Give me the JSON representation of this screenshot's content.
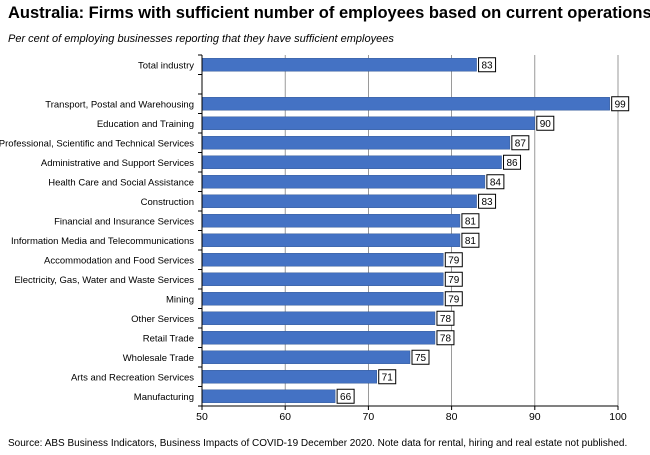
{
  "title": "Australia:  Firms with sufficient number of employees based on current operations",
  "subtitle": "Per cent of employing businesses reporting that they have sufficient employees",
  "source": "Source: ABS Business Indicators, Business Impacts of COVID-19 December 2020.  Note data for rental, hiring and real estate not published.",
  "colors": {
    "bar": "#4472C4",
    "bar_edge": "#2F5597",
    "grid": "#808080"
  },
  "chart_data": {
    "type": "bar",
    "orientation": "horizontal",
    "categories": [
      "Total industry",
      "",
      "Transport, Postal and Warehousing",
      "Education and Training",
      "Professional, Scientific and Technical Services",
      "Administrative and Support Services",
      "Health Care and Social Assistance",
      "Construction",
      "Financial and Insurance Services",
      "Information Media and Telecommunications",
      "Accommodation and Food Services",
      "Electricity, Gas, Water and Waste Services",
      "Mining",
      "Other Services",
      "Retail Trade",
      "Wholesale Trade",
      "Arts and Recreation Services",
      "Manufacturing"
    ],
    "values": [
      83,
      null,
      99,
      90,
      87,
      86,
      84,
      83,
      81,
      81,
      79,
      79,
      79,
      78,
      78,
      75,
      71,
      66
    ],
    "xlim": [
      50,
      100
    ],
    "xticks": [
      50,
      60,
      70,
      80,
      90,
      100
    ],
    "grid": "vertical",
    "legend": "none"
  }
}
